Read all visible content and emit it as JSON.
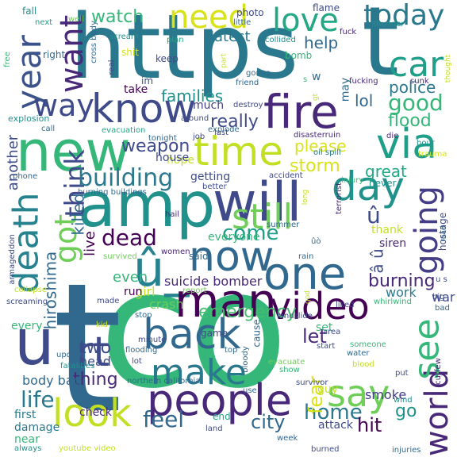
{
  "background": "#ffffff",
  "palette": [
    "#440154",
    "#3b528b",
    "#21908d",
    "#5dc863",
    "#c8e020",
    "#fde725"
  ],
  "words": [
    {
      "text": "co",
      "color": "#35b779"
    },
    {
      "text": "t",
      "color": "#31688e"
    },
    {
      "text": "https",
      "color": "#2a788e"
    },
    {
      "text": "t",
      "color": "#2a788e"
    },
    {
      "text": "amp",
      "color": "#21918c"
    },
    {
      "text": "new",
      "color": "#35b779"
    },
    {
      "text": "will",
      "color": "#3e4a89"
    },
    {
      "text": "fire",
      "color": "#482878"
    },
    {
      "text": "people",
      "color": "#482878"
    },
    {
      "text": "û_",
      "color": "#26828e"
    },
    {
      "text": "one",
      "color": "#31688e"
    },
    {
      "text": "now",
      "color": "#31688e"
    },
    {
      "text": "back",
      "color": "#31688e"
    },
    {
      "text": "man",
      "color": "#440154"
    },
    {
      "text": "time",
      "color": "#c2df23"
    },
    {
      "text": "know",
      "color": "#3e4a89"
    },
    {
      "text": "day",
      "color": "#21918c"
    },
    {
      "text": "via",
      "color": "#1f9e89"
    },
    {
      "text": "video",
      "color": "#440154"
    },
    {
      "text": "look",
      "color": "#c2df23"
    },
    {
      "text": "say",
      "color": "#6ece58"
    },
    {
      "text": "make",
      "color": "#2a788e"
    },
    {
      "text": "still",
      "color": "#6ece58"
    },
    {
      "text": "love",
      "color": "#22a884"
    },
    {
      "text": "need",
      "color": "#d8e219"
    },
    {
      "text": "car",
      "color": "#1f9e89"
    },
    {
      "text": "today",
      "color": "#2a788e"
    },
    {
      "text": "death",
      "color": "#26828e"
    },
    {
      "text": "u",
      "color": "#3e4a89"
    },
    {
      "text": "rt",
      "color": "#3e4a89"
    },
    {
      "text": "year",
      "color": "#3b528b"
    },
    {
      "text": "want",
      "color": "#482878"
    },
    {
      "text": "going",
      "color": "#433e85"
    },
    {
      "text": "world",
      "color": "#482878"
    },
    {
      "text": "see",
      "color": "#35b779"
    },
    {
      "text": "got",
      "color": "#6ece58"
    },
    {
      "text": "way",
      "color": "#3e4a89"
    },
    {
      "text": "think",
      "color": "#3e4a89"
    },
    {
      "text": "good",
      "color": "#35b779"
    },
    {
      "text": "building",
      "color": "#2a788e"
    },
    {
      "text": "emergency",
      "color": "#44bf70"
    },
    {
      "text": "dead",
      "color": "#440154"
    },
    {
      "text": "come",
      "color": "#1f9e89"
    },
    {
      "text": "home",
      "color": "#2a788e"
    },
    {
      "text": "feel",
      "color": "#31688e"
    },
    {
      "text": "city",
      "color": "#31688e"
    },
    {
      "text": "go",
      "color": "#21918c"
    },
    {
      "text": "hit",
      "color": "#440154"
    },
    {
      "text": "life",
      "color": "#2a788e"
    },
    {
      "text": "thing",
      "color": "#482878"
    },
    {
      "text": "two",
      "color": "#3e4a89"
    },
    {
      "text": "fear",
      "color": "#d8e219"
    },
    {
      "text": "let",
      "color": "#482878"
    },
    {
      "text": "burning",
      "color": "#482878"
    },
    {
      "text": "storm",
      "color": "#d8e219"
    },
    {
      "text": "great",
      "color": "#22a884"
    },
    {
      "text": "flood",
      "color": "#35b779"
    },
    {
      "text": "lol",
      "color": "#31688e"
    },
    {
      "text": "police",
      "color": "#2a788e"
    },
    {
      "text": "help",
      "color": "#31688e"
    },
    {
      "text": "latest",
      "color": "#2a788e"
    },
    {
      "text": "families",
      "color": "#21918c"
    },
    {
      "text": "really",
      "color": "#3e4a89"
    },
    {
      "text": "please",
      "color": "#d8e219"
    },
    {
      "text": "weapon",
      "color": "#3e4a89"
    },
    {
      "text": "hiroshima",
      "color": "#31688e"
    },
    {
      "text": "killed",
      "color": "#31688e"
    },
    {
      "text": "watch",
      "color": "#35b779"
    },
    {
      "text": "suicide bomber",
      "color": "#482878"
    },
    {
      "text": "even",
      "color": "#35b779"
    },
    {
      "text": "â û",
      "color": "#3e4a89"
    },
    {
      "text": "û",
      "color": "#3e4a89"
    },
    {
      "text": "crash",
      "color": "#6ece58"
    },
    {
      "text": "body bag",
      "color": "#31688e"
    },
    {
      "text": "head",
      "color": "#3e4a89"
    },
    {
      "text": "smoke",
      "color": "#433e85"
    },
    {
      "text": "another",
      "color": "#3e4a89"
    },
    {
      "text": "girl",
      "color": "#c2df23"
    },
    {
      "text": "live",
      "color": "#440154"
    },
    {
      "text": "everyone",
      "color": "#35b779"
    },
    {
      "text": "work",
      "color": "#2a788e"
    },
    {
      "text": "war",
      "color": "#3e4a89"
    },
    {
      "text": "check",
      "color": "#482878"
    },
    {
      "text": "first",
      "color": "#2a788e"
    },
    {
      "text": "damage",
      "color": "#2a788e"
    },
    {
      "text": "near",
      "color": "#35b779"
    },
    {
      "text": "hope",
      "color": "#c2df23"
    },
    {
      "text": "getting",
      "color": "#3e4a89"
    },
    {
      "text": "take",
      "color": "#440154"
    },
    {
      "text": "much",
      "color": "#433e85"
    },
    {
      "text": "house",
      "color": "#3e4a89"
    },
    {
      "text": "keep",
      "color": "#3e4a89"
    },
    {
      "text": "im",
      "color": "#3e4a89"
    },
    {
      "text": "shit",
      "color": "#d8e219"
    },
    {
      "text": "right",
      "color": "#31688e"
    },
    {
      "text": "may",
      "color": "#31688e"
    },
    {
      "text": "w",
      "color": "#31688e"
    },
    {
      "text": "thank",
      "color": "#c2df23"
    },
    {
      "text": "siren",
      "color": "#482878"
    },
    {
      "text": "run",
      "color": "#440154"
    },
    {
      "text": "said",
      "color": "#31688e"
    },
    {
      "text": "every",
      "color": "#35b779"
    },
    {
      "text": "game",
      "color": "#3e4a89"
    },
    {
      "text": "cause",
      "color": "#31688e"
    },
    {
      "text": "set",
      "color": "#35b779"
    },
    {
      "text": "guy",
      "color": "#c2df23"
    },
    {
      "text": "end",
      "color": "#22a884"
    },
    {
      "text": "attack",
      "color": "#3e4a89"
    },
    {
      "text": "never",
      "color": "#21918c"
    },
    {
      "text": "hostage",
      "color": "#3e4a89"
    },
    {
      "text": "photo",
      "color": "#3e4a89"
    },
    {
      "text": "fall",
      "color": "#21918c"
    },
    {
      "text": "flame",
      "color": "#3e4a89"
    },
    {
      "text": "little",
      "color": "#31688e"
    },
    {
      "text": "thunder",
      "color": "#21918c"
    },
    {
      "text": "collided",
      "color": "#21918c"
    },
    {
      "text": "fuck",
      "color": "#482878"
    },
    {
      "text": "well",
      "color": "#6ece58"
    },
    {
      "text": "next",
      "color": "#1f9e89"
    },
    {
      "text": "scream",
      "color": "#21918c"
    },
    {
      "text": "cross body",
      "color": "#31688e"
    },
    {
      "text": "real",
      "color": "#3e4a89"
    },
    {
      "text": "plan",
      "color": "#22a884"
    },
    {
      "text": "bomb",
      "color": "#35b779"
    },
    {
      "text": "gonna",
      "color": "#31688e"
    },
    {
      "text": "friend",
      "color": "#31688e"
    },
    {
      "text": "destroy",
      "color": "#3e4a89"
    },
    {
      "text": "around",
      "color": "#3e4a89"
    },
    {
      "text": "fucking",
      "color": "#482878"
    },
    {
      "text": "sunk",
      "color": "#482878"
    },
    {
      "text": "explosion",
      "color": "#21918c"
    },
    {
      "text": "call",
      "color": "#31688e"
    },
    {
      "text": "evacuation",
      "color": "#22a884"
    },
    {
      "text": "explode",
      "color": "#31688e"
    },
    {
      "text": "last",
      "color": "#3e4a89"
    },
    {
      "text": "job",
      "color": "#3e4a89"
    },
    {
      "text": "tonight",
      "color": "#31688e"
    },
    {
      "text": "disasterruin",
      "color": "#482878"
    },
    {
      "text": "die",
      "color": "#482878"
    },
    {
      "text": "oil spill",
      "color": "#2a788e"
    },
    {
      "text": "hour",
      "color": "#21918c"
    },
    {
      "text": "trauma",
      "color": "#d8e219"
    },
    {
      "text": "phone",
      "color": "#31688e"
    },
    {
      "text": "burning buildings",
      "color": "#31688e"
    },
    {
      "text": "better",
      "color": "#3e4a89"
    },
    {
      "text": "accident",
      "color": "#3e4a89"
    },
    {
      "text": "injury",
      "color": "#35b779"
    },
    {
      "text": "terrorist",
      "color": "#482878"
    },
    {
      "text": "hail",
      "color": "#482878"
    },
    {
      "text": "summer",
      "color": "#31688e"
    },
    {
      "text": "survived",
      "color": "#6ece58"
    },
    {
      "text": "women",
      "color": "#482878"
    },
    {
      "text": "rain",
      "color": "#31688e"
    },
    {
      "text": "armageddon",
      "color": "#3e4a89"
    },
    {
      "text": "collapse",
      "color": "#c2df23"
    },
    {
      "text": "screaming",
      "color": "#3e4a89"
    },
    {
      "text": "made",
      "color": "#3e4a89"
    },
    {
      "text": "report",
      "color": "#6ece58"
    },
    {
      "text": "stop",
      "color": "#31688e"
    },
    {
      "text": "landslide",
      "color": "#3e4a89"
    },
    {
      "text": "liked",
      "color": "#3e4a89"
    },
    {
      "text": "whirlwind",
      "color": "#35b779"
    },
    {
      "text": "big",
      "color": "#3e4a89"
    },
    {
      "text": "u s",
      "color": "#3e4a89"
    },
    {
      "text": "bad",
      "color": "#31688e"
    },
    {
      "text": "update",
      "color": "#31688e"
    },
    {
      "text": "kid",
      "color": "#c2df23"
    },
    {
      "text": "minute",
      "color": "#3e4a89"
    },
    {
      "text": "area",
      "color": "#3e4a89"
    },
    {
      "text": "start",
      "color": "#3e4a89"
    },
    {
      "text": "water",
      "color": "#31688e"
    },
    {
      "text": "someone",
      "color": "#35b779"
    },
    {
      "text": "blood",
      "color": "#c2df23"
    },
    {
      "text": "bloody",
      "color": "#31688e"
    },
    {
      "text": "flooding",
      "color": "#31688e"
    },
    {
      "text": "top",
      "color": "#31688e"
    },
    {
      "text": "lot",
      "color": "#3e4a89"
    },
    {
      "text": "evacuate",
      "color": "#6ece58"
    },
    {
      "text": "show",
      "color": "#35b779"
    },
    {
      "text": "put",
      "color": "#3e4a89"
    },
    {
      "text": "curfew",
      "color": "#482878"
    },
    {
      "text": "fatalities",
      "color": "#21918c"
    },
    {
      "text": "northern california",
      "color": "#31688e"
    },
    {
      "text": "use",
      "color": "#31688e"
    },
    {
      "text": "survivor",
      "color": "#3e4a89"
    },
    {
      "text": "wind",
      "color": "#21918c"
    },
    {
      "text": "always",
      "color": "#21918c"
    },
    {
      "text": "youtube video",
      "color": "#c2df23"
    },
    {
      "text": "land",
      "color": "#3e4a89"
    },
    {
      "text": "week",
      "color": "#31688e"
    },
    {
      "text": "burned",
      "color": "#3e4a89"
    },
    {
      "text": "injuries",
      "color": "#31688e"
    },
    {
      "text": "free",
      "color": "#35b779"
    },
    {
      "text": "part",
      "color": "#c2df23"
    },
    {
      "text": "road",
      "color": "#31688e"
    },
    {
      "text": "long",
      "color": "#c2df23"
    },
    {
      "text": "ûò",
      "color": "#31688e"
    },
    {
      "text": "gt",
      "color": "#c2df23"
    },
    {
      "text": "god",
      "color": "#c2df23"
    },
    {
      "text": "thought",
      "color": "#c2df23"
    },
    {
      "text": "s",
      "color": "#35b779"
    }
  ]
}
